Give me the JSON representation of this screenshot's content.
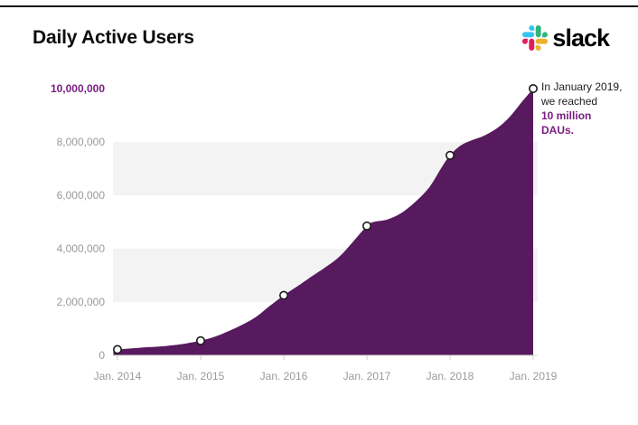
{
  "page": {
    "title": "Daily Active Users",
    "brand": {
      "wordmark": "slack"
    }
  },
  "annotation": {
    "line1": "In January 2019,",
    "line2": "we reached",
    "line3": "10 million",
    "line4": "DAUs."
  },
  "colors": {
    "area": "#571a5e",
    "accent_text": "#7a1e82",
    "marker_fill": "#ffffff",
    "marker_stroke": "#1a1a1a",
    "band": "#f3f3f3",
    "axis_line": "#dddddd",
    "tick_text": "#9a9a9a",
    "slack_blue": "#36C5F0",
    "slack_green": "#2EB67D",
    "slack_red": "#E01E5A",
    "slack_yellow": "#ECB22E"
  },
  "chart_data": {
    "type": "area",
    "title": "Daily Active Users",
    "ylabel": "",
    "xlabel": "",
    "ylim": [
      0,
      10000000
    ],
    "xlim": [
      2013.95,
      2019.0
    ],
    "grid": "alternating horizontal bands every 2,000,000",
    "legend": "none",
    "ytick_labels": [
      "10,000,000",
      "8,000,000",
      "6,000,000",
      "4,000,000",
      "2,000,000",
      "0"
    ],
    "ytick_values": [
      10000000,
      8000000,
      6000000,
      4000000,
      2000000,
      0
    ],
    "xtick_labels": [
      "Jan. 2014",
      "Jan. 2015",
      "Jan. 2016",
      "Jan. 2017",
      "Jan. 2018",
      "Jan. 2019"
    ],
    "xtick_values": [
      2014,
      2015,
      2016,
      2017,
      2018,
      2019
    ],
    "annotation": "In January 2019, we reached 10 million DAUs.",
    "series": [
      [
        2013.95,
        210000
      ],
      [
        2014.0,
        220000
      ],
      [
        2014.17,
        260000
      ],
      [
        2014.33,
        300000
      ],
      [
        2014.5,
        330000
      ],
      [
        2014.67,
        380000
      ],
      [
        2014.83,
        450000
      ],
      [
        2015.0,
        550000
      ],
      [
        2015.17,
        700000
      ],
      [
        2015.33,
        900000
      ],
      [
        2015.5,
        1150000
      ],
      [
        2015.67,
        1450000
      ],
      [
        2015.83,
        1850000
      ],
      [
        2016.0,
        2250000
      ],
      [
        2016.17,
        2600000
      ],
      [
        2016.33,
        2950000
      ],
      [
        2016.5,
        3300000
      ],
      [
        2016.67,
        3700000
      ],
      [
        2016.83,
        4250000
      ],
      [
        2017.0,
        4850000
      ],
      [
        2017.08,
        5000000
      ],
      [
        2017.25,
        5100000
      ],
      [
        2017.42,
        5350000
      ],
      [
        2017.58,
        5750000
      ],
      [
        2017.75,
        6300000
      ],
      [
        2017.9,
        7050000
      ],
      [
        2018.0,
        7500000
      ],
      [
        2018.12,
        7850000
      ],
      [
        2018.25,
        8050000
      ],
      [
        2018.42,
        8250000
      ],
      [
        2018.58,
        8550000
      ],
      [
        2018.72,
        8950000
      ],
      [
        2018.85,
        9450000
      ],
      [
        2019.0,
        10000000
      ]
    ],
    "markers": {
      "x": [
        2014,
        2015,
        2016,
        2017,
        2018,
        2019
      ],
      "values": [
        220000,
        550000,
        2250000,
        4850000,
        7500000,
        10000000
      ]
    }
  }
}
